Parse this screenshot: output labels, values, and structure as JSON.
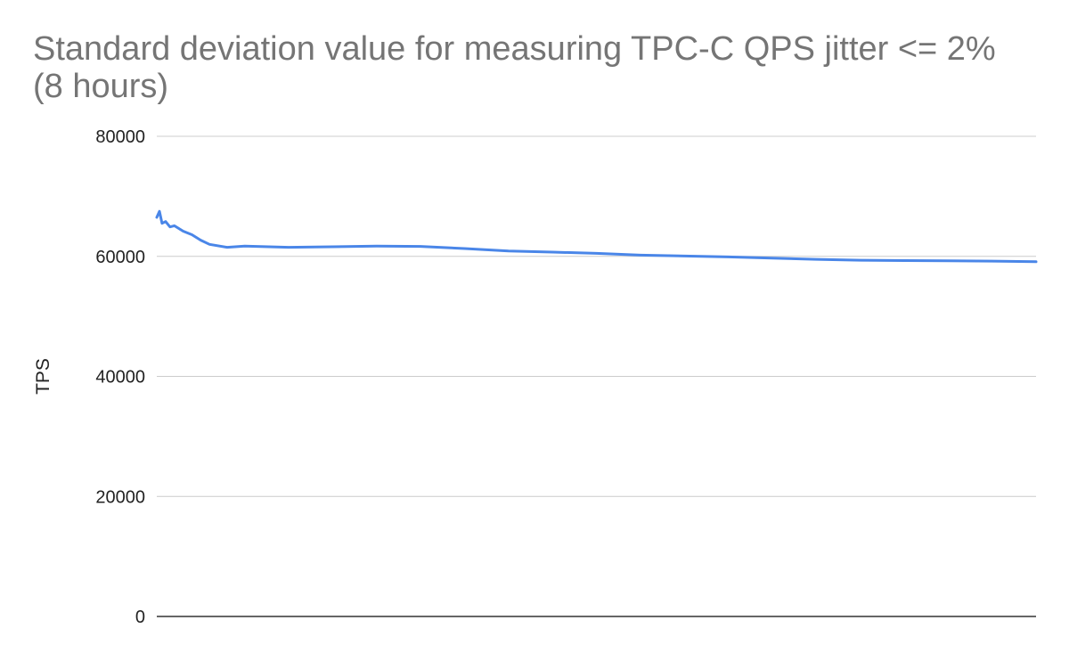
{
  "chart_data": {
    "type": "line",
    "title": "Standard deviation value for measuring TPC-C QPS jitter <= 2% (8 hours)",
    "xlabel": "",
    "ylabel": "TPS",
    "ylim": [
      0,
      80000
    ],
    "yticks": [
      "80000",
      "60000",
      "40000",
      "20000",
      "0"
    ],
    "grid": true,
    "legend": "none",
    "line_color": "#4a86e8",
    "gridline_color": "#cccccc",
    "axis_color": "#333333",
    "x_domain": [
      0,
      1000
    ],
    "series": [
      {
        "values_x": [
          0,
          3,
          6,
          10,
          15,
          20,
          30,
          40,
          50,
          60,
          80,
          100,
          150,
          200,
          250,
          300,
          350,
          400,
          450,
          500,
          550,
          600,
          650,
          700,
          750,
          800,
          850,
          900,
          950,
          1000
        ],
        "values_y": [
          66500,
          67500,
          65500,
          65800,
          64900,
          65100,
          64200,
          63600,
          62700,
          62000,
          61500,
          61700,
          61500,
          61600,
          61700,
          61650,
          61300,
          60900,
          60700,
          60500,
          60200,
          60050,
          59900,
          59700,
          59500,
          59350,
          59300,
          59250,
          59200,
          59100
        ]
      }
    ]
  }
}
